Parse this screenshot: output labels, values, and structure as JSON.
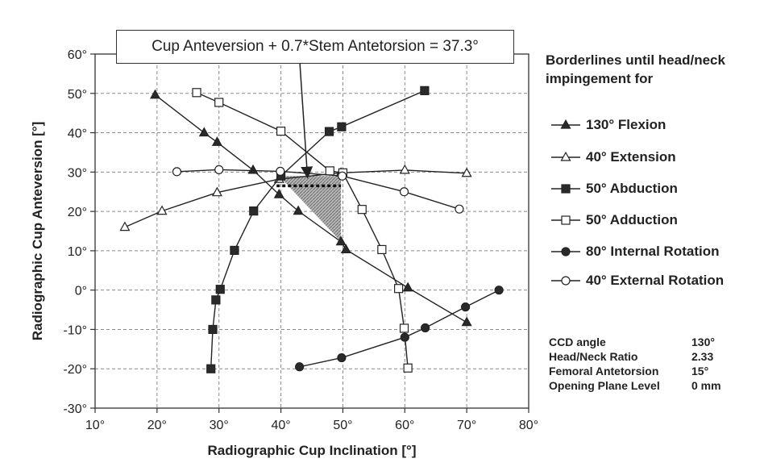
{
  "chart_data": {
    "type": "line",
    "title": "",
    "formula": "Cup Anteversion + 0.7*Stem Antetorsion = 37.3°",
    "xlabel": "Radiographic Cup Inclination  [°]",
    "ylabel": "Radiographic Cup Anteversion  [°]",
    "xlim": [
      10,
      80
    ],
    "ylim": [
      -30,
      60
    ],
    "xticks": [
      10,
      20,
      30,
      40,
      50,
      60,
      70,
      80
    ],
    "yticks": [
      -30,
      -20,
      -10,
      0,
      10,
      20,
      30,
      40,
      50,
      60
    ],
    "xtick_labels": [
      "10°",
      "20°",
      "30°",
      "40°",
      "50°",
      "60°",
      "70°",
      "80°"
    ],
    "ytick_labels": [
      "-30°",
      "-20°",
      "-10°",
      "0°",
      "10°",
      "20°",
      "30°",
      "40°",
      "50°",
      "60°"
    ],
    "grid": true,
    "legend_title": "Borderlines  until head/neck impingement for",
    "legend_position": "right",
    "series": [
      {
        "name": "130° Flexion",
        "marker": "triangle-filled",
        "points": [
          [
            19.7,
            49.6
          ],
          [
            27.6,
            40.0
          ],
          [
            29.7,
            37.6
          ],
          [
            35.5,
            30.5
          ],
          [
            39.7,
            24.3
          ],
          [
            42.8,
            20.1
          ],
          [
            49.7,
            12.3
          ],
          [
            50.5,
            10.3
          ],
          [
            60.5,
            0.6
          ],
          [
            70.0,
            -8.2
          ]
        ]
      },
      {
        "name": "40° Extension",
        "marker": "triangle-open",
        "points": [
          [
            14.8,
            16.0
          ],
          [
            20.8,
            20.1
          ],
          [
            29.7,
            24.8
          ],
          [
            39.7,
            28.2
          ],
          [
            49.7,
            29.8
          ],
          [
            60.0,
            30.5
          ],
          [
            70.0,
            29.7
          ]
        ]
      },
      {
        "name": "50° Abduction",
        "marker": "square-filled",
        "points": [
          [
            28.7,
            -20.0
          ],
          [
            29.0,
            -10.0
          ],
          [
            29.5,
            -2.5
          ],
          [
            30.2,
            0.2
          ],
          [
            32.5,
            10.1
          ],
          [
            35.6,
            20.1
          ],
          [
            40.0,
            29.0
          ],
          [
            47.8,
            40.3
          ],
          [
            49.8,
            41.5
          ],
          [
            63.2,
            50.7
          ]
        ]
      },
      {
        "name": "50° Adduction",
        "marker": "square-open",
        "points": [
          [
            26.4,
            50.2
          ],
          [
            30.0,
            47.7
          ],
          [
            40.0,
            40.4
          ],
          [
            47.9,
            30.3
          ],
          [
            50.0,
            29.8
          ],
          [
            53.1,
            20.5
          ],
          [
            56.3,
            10.3
          ],
          [
            59.0,
            0.4
          ],
          [
            59.9,
            -9.7
          ],
          [
            60.5,
            -19.8
          ]
        ]
      },
      {
        "name": "80° Internal Rotation",
        "marker": "circle-filled",
        "points": [
          [
            43.0,
            -19.5
          ],
          [
            49.8,
            -17.2
          ],
          [
            60.0,
            -12.0
          ],
          [
            63.3,
            -9.6
          ],
          [
            69.8,
            -4.3
          ],
          [
            75.2,
            0.0
          ]
        ]
      },
      {
        "name": "40° External Rotation",
        "marker": "circle-open",
        "points": [
          [
            23.2,
            30.1
          ],
          [
            30.0,
            30.6
          ],
          [
            39.9,
            30.2
          ],
          [
            49.9,
            29.0
          ],
          [
            59.9,
            25.0
          ],
          [
            68.8,
            20.6
          ]
        ]
      }
    ],
    "safe_zone": {
      "style": "gray-hatched-polygon",
      "polygon": [
        [
          39.7,
          29.0
        ],
        [
          49.7,
          29.0
        ],
        [
          49.7,
          12.3
        ]
      ],
      "dotted_line": {
        "x": [
          39.3,
          49.7
        ],
        "y": 26.5
      }
    },
    "annotation_arrow": {
      "from": [
        40.2,
        60.0
      ],
      "to": [
        44.3,
        28.2
      ]
    },
    "parameters": [
      {
        "name": "CCD angle",
        "value": "130°"
      },
      {
        "name": "Head/Neck Ratio",
        "value": "2.33"
      },
      {
        "name": "Femoral Antetorsion",
        "value": "15°"
      },
      {
        "name": "Opening Plane Level",
        "value": "0 mm"
      }
    ]
  }
}
